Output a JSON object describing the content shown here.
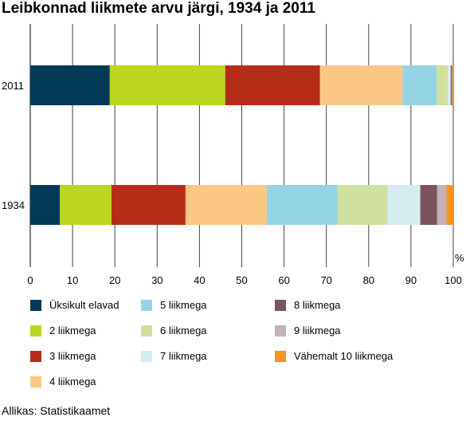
{
  "chart_data": {
    "type": "bar",
    "orientation": "horizontal",
    "stacked": true,
    "title": "Leibkonnad liikmete arvu järgi, 1934 ja 2011",
    "categories": [
      "2011",
      "1934"
    ],
    "x_unit": "%",
    "xlim": [
      0,
      100
    ],
    "x_ticks": [
      0,
      10,
      20,
      30,
      40,
      50,
      60,
      70,
      80,
      90,
      100
    ],
    "grid": "vertical",
    "legend_position": "bottom",
    "series": [
      {
        "name": "Üksikult elavad",
        "color": "#003a57",
        "values": [
          18.8,
          7.0
        ]
      },
      {
        "name": "2 liikmega",
        "color": "#bcd520",
        "values": [
          27.3,
          12.2
        ]
      },
      {
        "name": "3 liikmega",
        "color": "#b52d18",
        "values": [
          22.4,
          17.5
        ]
      },
      {
        "name": "4 liikmega",
        "color": "#fcc782",
        "values": [
          19.5,
          19.2
        ]
      },
      {
        "name": "5 liikmega",
        "color": "#95d4e4",
        "values": [
          8.1,
          16.7
        ]
      },
      {
        "name": "6 liikmega",
        "color": "#cfe09f",
        "values": [
          2.6,
          11.9
        ]
      },
      {
        "name": "7 liikmega",
        "color": "#d5edf1",
        "values": [
          0.7,
          7.7
        ]
      },
      {
        "name": "8 liikmega",
        "color": "#7b535d",
        "values": [
          0.3,
          4.0
        ]
      },
      {
        "name": "9 liikmega",
        "color": "#c4b0b8",
        "values": [
          0.1,
          2.2
        ]
      },
      {
        "name": "Vähemalt 10 liikmega",
        "color": "#f7931e",
        "values": [
          0.2,
          1.6
        ]
      }
    ]
  },
  "source": "Allikas: Statistikaamet"
}
